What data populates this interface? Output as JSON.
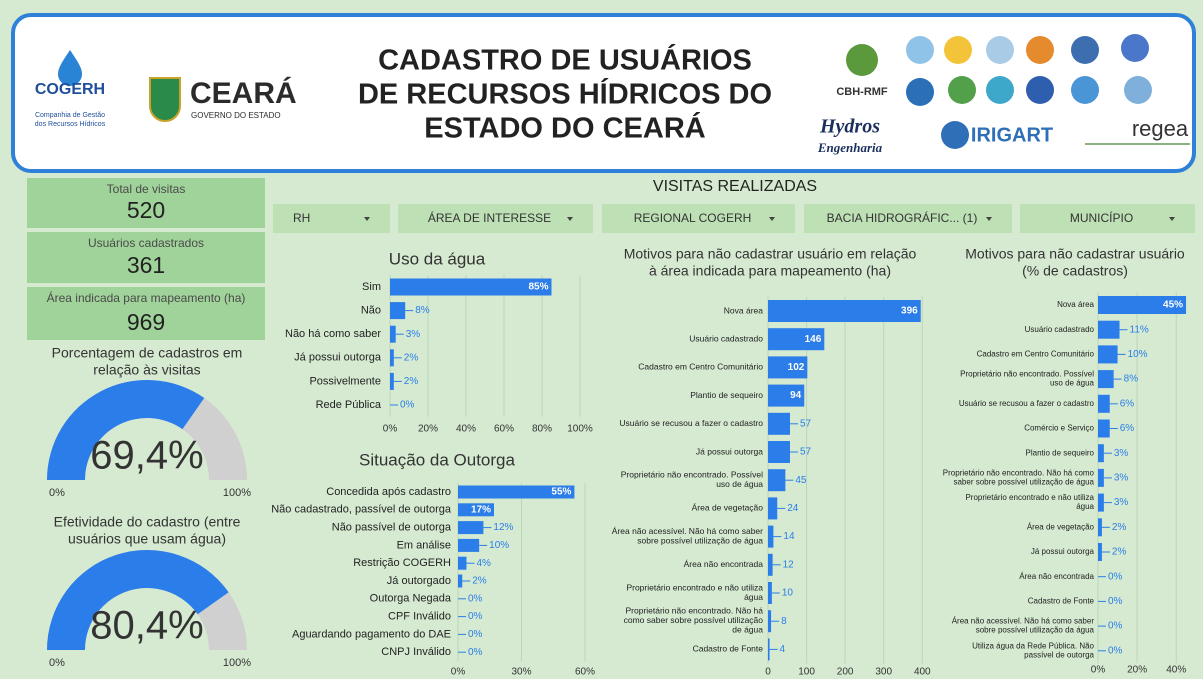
{
  "header": {
    "title_lines": [
      "CADASTRO DE USUÁRIOS",
      "DE RECURSOS HÍDRICOS DO",
      "ESTADO DO CEARÁ"
    ],
    "logos": [
      "COGERH",
      "Companhia de Gestão",
      "dos Recursos Hídricos",
      "CEARÁ",
      "GOVERNO DO ESTADO",
      "CBH-RMF",
      "Hydros",
      "Engenharia",
      "IRIGART",
      "regea"
    ]
  },
  "kpis": [
    {
      "label": "Total de visitas",
      "value": 520
    },
    {
      "label": "Usuários cadastrados",
      "value": 361
    },
    {
      "label": "Área indicada para mapeamento (ha)",
      "value": 969
    }
  ],
  "section_title": "VISITAS REALIZADAS",
  "filters": [
    "RH",
    "ÁREA DE INTERESSE",
    "REGIONAL COGERH",
    "BACIA HIDROGRÁFIC... (1)",
    "MUNICÍPIO"
  ],
  "gauges": [
    {
      "title": "Porcentagem de cadastros em relação às visitas",
      "value": 69.4,
      "value_label": "69,4%",
      "ticks": [
        {
          "value": 0,
          "label": "0%"
        },
        {
          "value": 100,
          "label": "100%"
        }
      ]
    },
    {
      "title": "Efetividade do cadastro (entre usuários que usam água)",
      "value": 80.4,
      "value_label": "80,4%",
      "ticks": [
        {
          "value": 0,
          "label": "0%"
        },
        {
          "value": 100,
          "label": "100%"
        }
      ]
    }
  ],
  "chart_data": [
    {
      "type": "bar",
      "orientation": "horizontal",
      "title": "Uso da água",
      "color": "#2b7de9",
      "categories": [
        "Sim",
        "Não",
        "Não há como saber",
        "Já possui outorga",
        "Possivelmente",
        "Rede Pública"
      ],
      "values": [
        85,
        8,
        3,
        2,
        2,
        0
      ],
      "value_labels": [
        "85%",
        "8%",
        "3%",
        "2%",
        "2%",
        "0%"
      ],
      "xlim": [
        0,
        100
      ],
      "xticks": [
        {
          "value": 0,
          "label": "0%"
        },
        {
          "value": 20,
          "label": "20%"
        },
        {
          "value": 40,
          "label": "40%"
        },
        {
          "value": 60,
          "label": "60%"
        },
        {
          "value": 80,
          "label": "80%"
        },
        {
          "value": 100,
          "label": "100%"
        }
      ]
    },
    {
      "type": "bar",
      "orientation": "horizontal",
      "title": "Situação da Outorga",
      "color": "#2b7de9",
      "categories": [
        "Concedida após cadastro",
        "Não cadastrado, passível de outorga",
        "Não passível de outorga",
        "Em análise",
        "Restrição COGERH",
        "Já outorgado",
        "Outorga Negada",
        "CPF Inválido",
        "Aguardando pagamento do DAE",
        "CNPJ Inválido"
      ],
      "values": [
        55,
        17,
        12,
        10,
        4,
        2,
        0,
        0,
        0,
        0
      ],
      "value_labels": [
        "55%",
        "17%",
        "12%",
        "10%",
        "4%",
        "2%",
        "0%",
        "0%",
        "0%",
        "0%"
      ],
      "xlim": [
        0,
        60
      ],
      "xticks": [
        {
          "value": 0,
          "label": "0%"
        },
        {
          "value": 30,
          "label": "30%"
        },
        {
          "value": 60,
          "label": "60%"
        }
      ]
    },
    {
      "type": "bar",
      "orientation": "horizontal",
      "title": "Motivos para não cadastrar usuário em relação à área indicada para mapeamento (ha)",
      "color": "#2b7de9",
      "categories": [
        "Nova área",
        "Usuário cadastrado",
        "Cadastro em Centro Comunitário",
        "Plantio de sequeiro",
        "Usuário se recusou a fazer o cadastro",
        "Já possui outorga",
        "Proprietário não encontrado. Possível uso de água",
        "Área de vegetação",
        "Área não acessível. Não há como saber sobre possível utilização de água",
        "Área não encontrada",
        "Proprietário encontrado e não utiliza água",
        "Proprietário não encontrado. Não há como saber sobre possível utilização de água",
        "Cadastro de Fonte"
      ],
      "values": [
        396,
        146,
        102,
        94,
        57,
        57,
        45,
        24,
        14,
        12,
        10,
        8,
        4
      ],
      "xlim": [
        0,
        420
      ],
      "xticks": [
        0,
        100,
        200,
        300,
        400
      ]
    },
    {
      "type": "bar",
      "orientation": "horizontal",
      "title": "Motivos para não cadastrar usuário (% de cadastros)",
      "color": "#2b7de9",
      "categories": [
        "Nova área",
        "Usuário cadastrado",
        "Cadastro em Centro Comunitário",
        "Proprietário não encontrado. Possível uso de água",
        "Usuário se recusou a fazer o cadastro",
        "Comércio e Serviço",
        "Plantio de sequeiro",
        "Proprietário não encontrado. Não há como saber sobre possível utilização de água",
        "Proprietário encontrado e não utiliza água",
        "Área de vegetação",
        "Já possui outorga",
        "Área não encontrada",
        "Cadastro de Fonte",
        "Área não acessível. Não há como saber sobre possível utilização da água",
        "Utiliza água da Rede Pública. Não passível de outorga"
      ],
      "values": [
        45,
        11,
        10,
        8,
        6,
        6,
        3,
        3,
        3,
        2,
        2,
        0,
        0,
        0,
        0
      ],
      "value_labels": [
        "45%",
        "11%",
        "10%",
        "8%",
        "6%",
        "6%",
        "3%",
        "3%",
        "3%",
        "2%",
        "2%",
        "0%",
        "0%",
        "0%",
        "0%"
      ],
      "xlim": [
        0,
        46
      ],
      "xticks": [
        {
          "value": 0,
          "label": "0%"
        },
        {
          "value": 20,
          "label": "20%"
        },
        {
          "value": 40,
          "label": "40%"
        }
      ]
    }
  ]
}
